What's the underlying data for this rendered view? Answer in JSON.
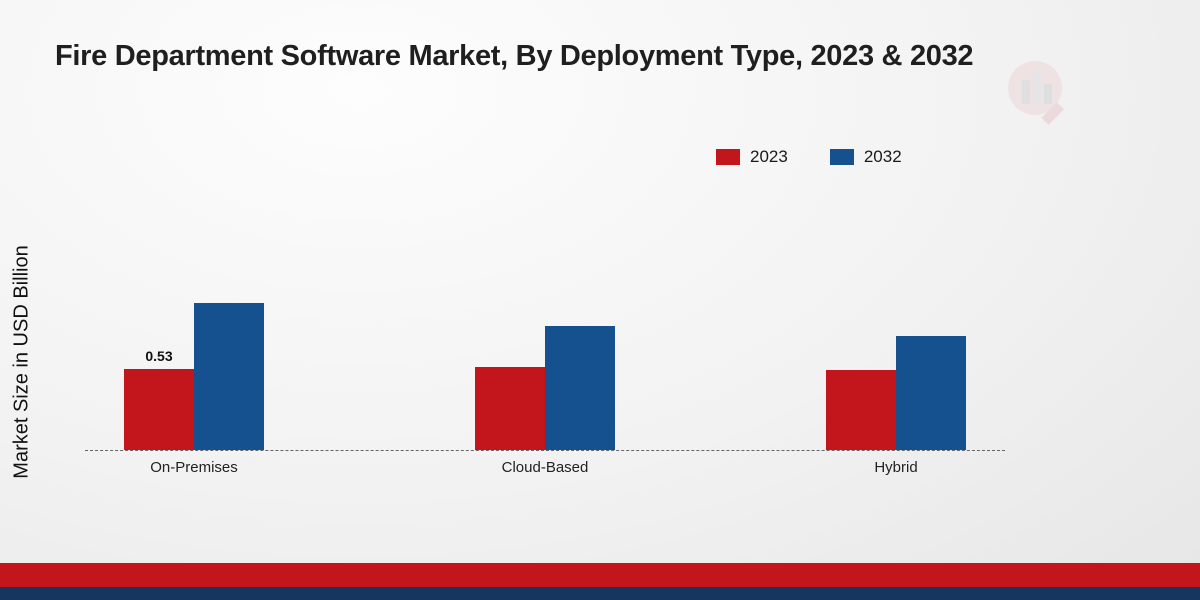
{
  "page": {
    "title": "Fire Department Software Market, By Deployment Type, 2023 & 2032",
    "ylabel": "Market Size in USD Billion"
  },
  "legend": {
    "items": [
      {
        "label": "2023",
        "color": "#c3161c"
      },
      {
        "label": "2032",
        "color": "#16518f"
      }
    ]
  },
  "chart_data": {
    "type": "bar",
    "title": "Fire Department Software Market, By Deployment Type, 2023 & 2032",
    "ylabel": "Market Size in USD Billion",
    "xlabel": "",
    "categories": [
      "On-Premises",
      "Cloud-Based",
      "Hybrid"
    ],
    "series": [
      {
        "name": "2023",
        "color": "#c3161c",
        "values": [
          0.53,
          0.54,
          0.52
        ]
      },
      {
        "name": "2032",
        "color": "#16518f",
        "values": [
          0.96,
          0.81,
          0.74
        ]
      }
    ],
    "ylim": [
      0,
      1.1
    ],
    "bar_labels": [
      [
        "0.53",
        "",
        ""
      ],
      [
        "",
        "",
        ""
      ]
    ],
    "legend_position": "top-right",
    "grid": false,
    "baseline_style": "dashed"
  },
  "footer": {
    "red_color": "#c3161c",
    "navy_color": "#16355f"
  }
}
